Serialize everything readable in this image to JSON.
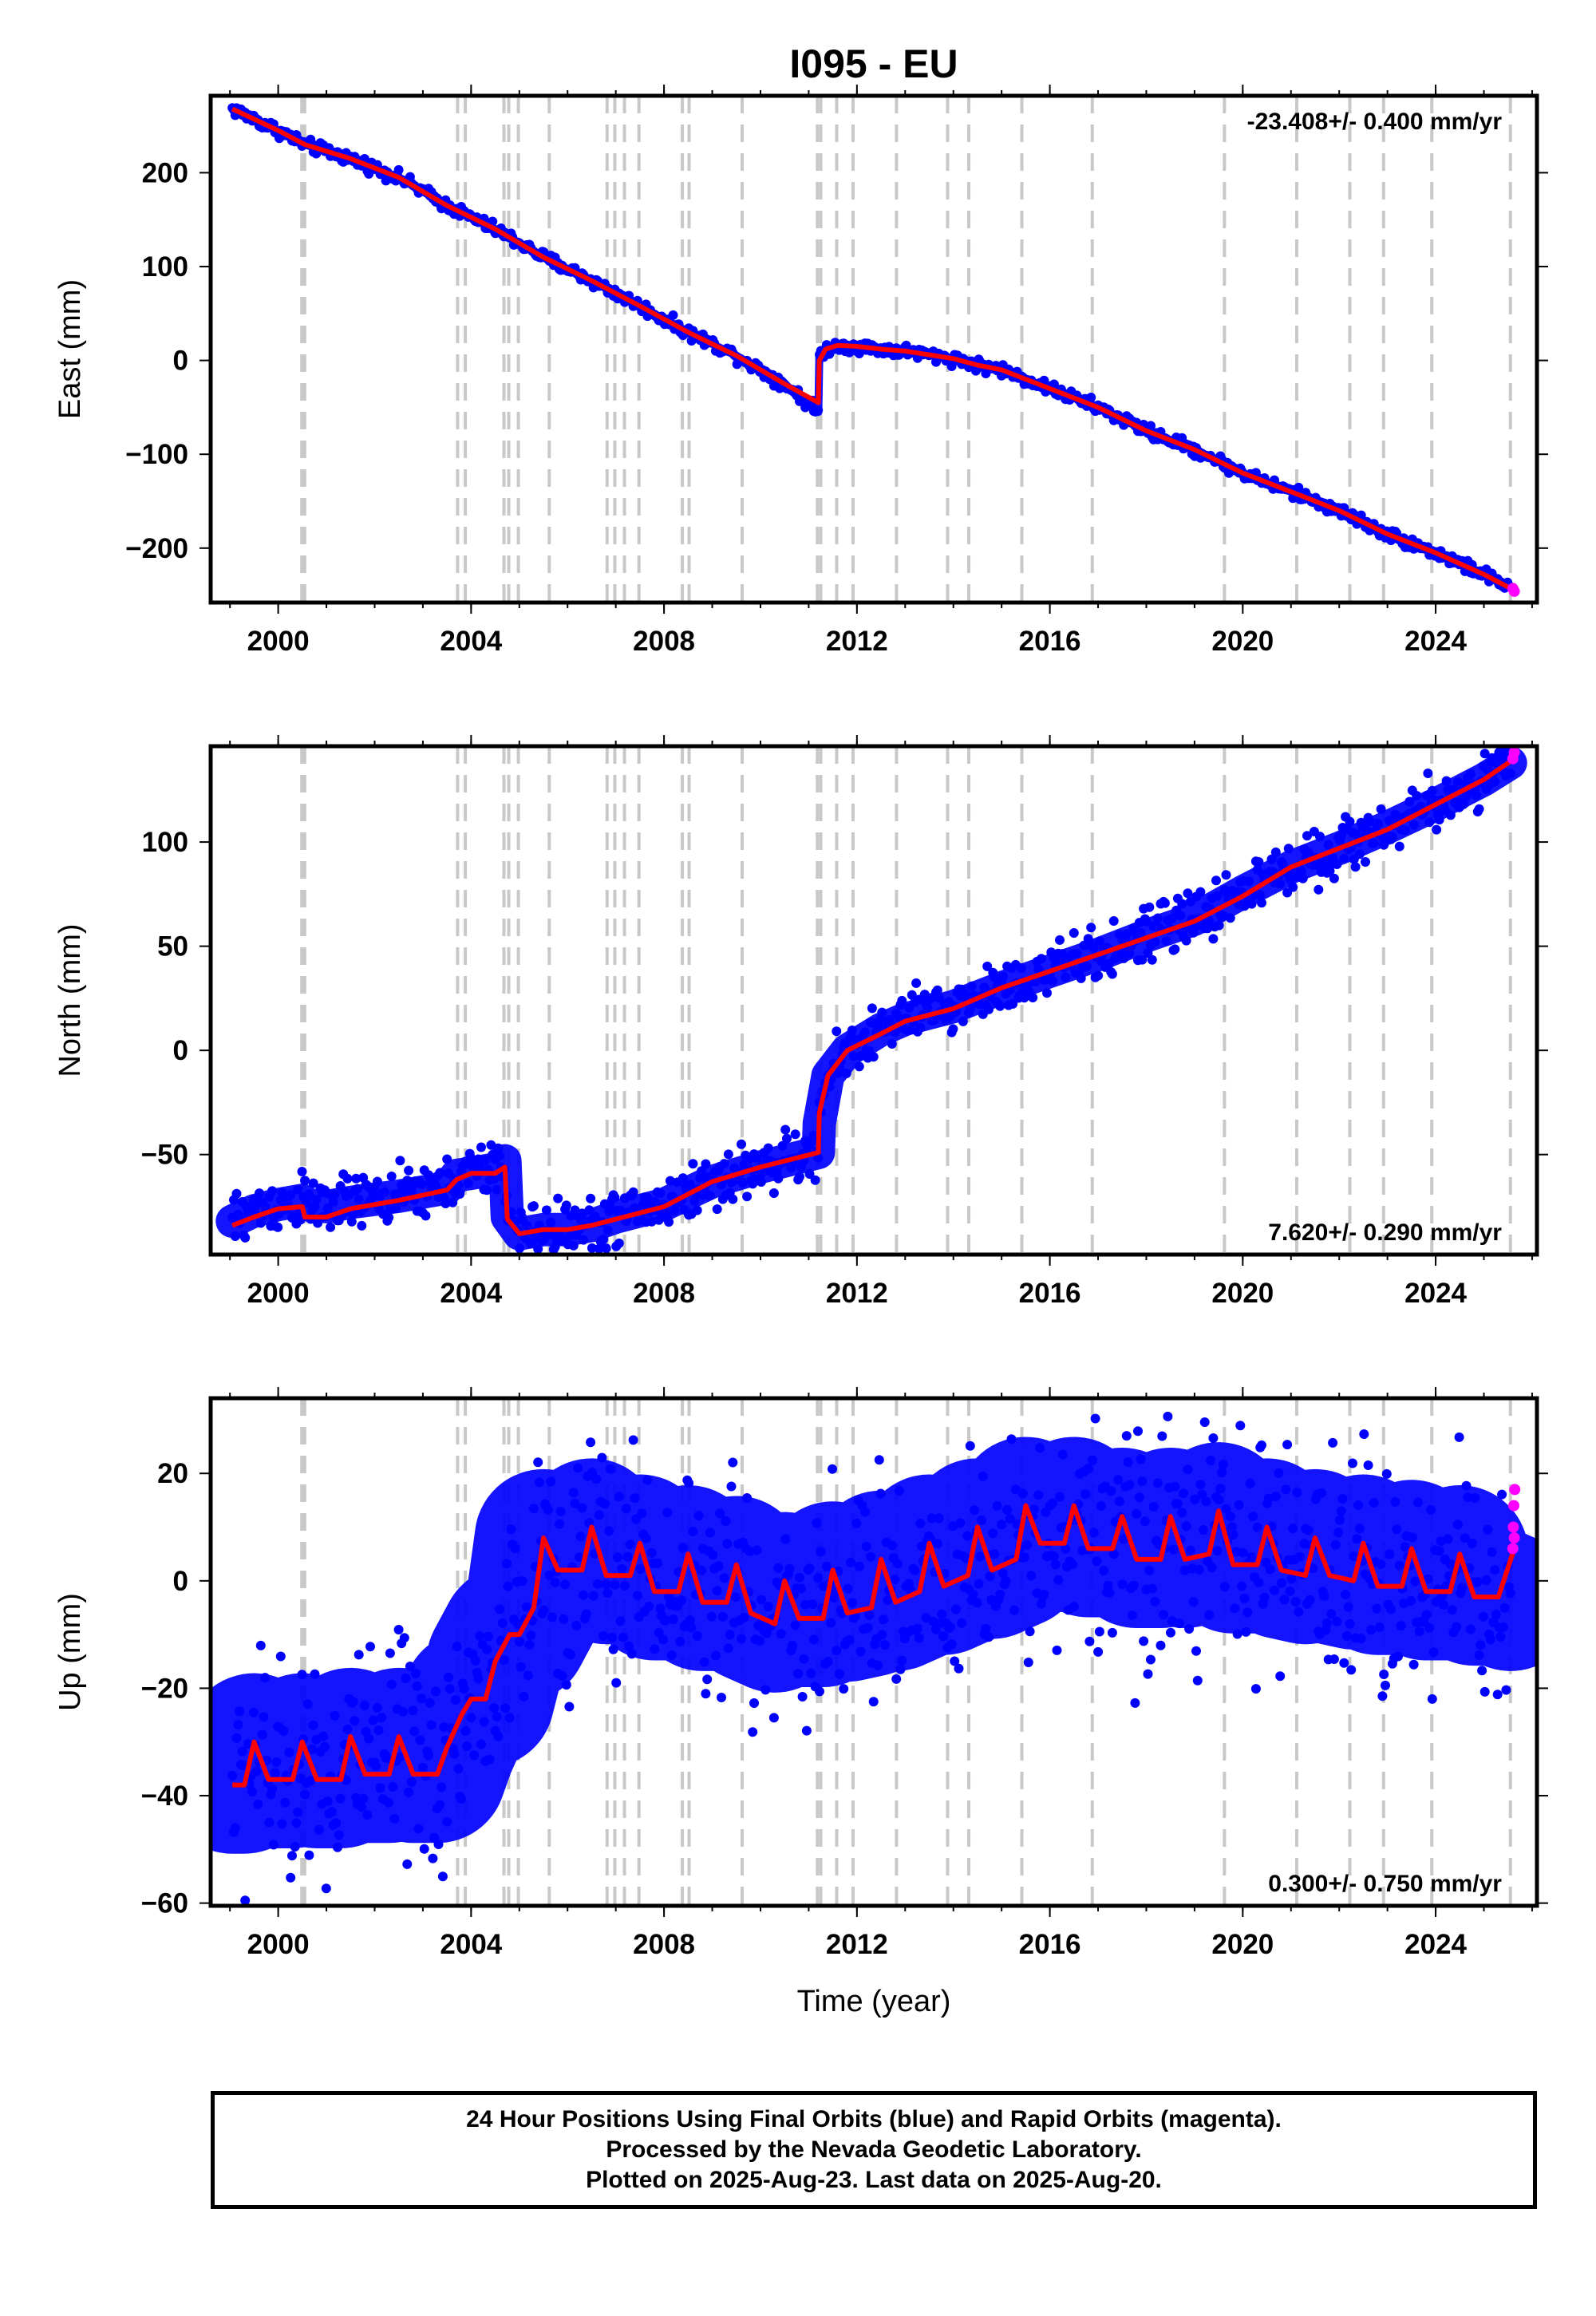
{
  "title": "I095 - EU",
  "time_axis_label": "Time (year)",
  "footer_lines": [
    "24 Hour Positions Using Final Orbits (blue) and Rapid Orbits (magenta).",
    "Processed by the Nevada Geodetic Laboratory.",
    "Plotted on 2025-Aug-23. Last data on 2025-Aug-20."
  ],
  "colors": {
    "final_orbits": "#0000ff",
    "rapid_orbits": "#ff00ff",
    "model_fit": "#ff0000",
    "event_lines": "#c8c8c8"
  },
  "chart_data": [
    {
      "type": "scatter",
      "ylabel": "East (mm)",
      "xlabel": "",
      "rate": "-23.408+/- 0.400 mm/yr",
      "rate_position": "top-right",
      "xlim": [
        1998.6,
        2026.1
      ],
      "ylim": [
        -258,
        282
      ],
      "x_ticks": [
        2000,
        2004,
        2008,
        2012,
        2016,
        2020,
        2024
      ],
      "x_tick_labels": [
        "2000",
        "2004",
        "2008",
        "2012",
        "2016",
        "2020",
        "2024"
      ],
      "y_ticks": [
        -200,
        -100,
        0,
        100,
        200
      ],
      "y_tick_labels": [
        "−200",
        "−100",
        "0",
        "100",
        "200"
      ],
      "event_years": [
        2000.49,
        2000.55,
        2003.72,
        2003.88,
        2004.68,
        2004.78,
        2004.98,
        2005.62,
        2006.82,
        2006.98,
        2007.18,
        2007.48,
        2008.38,
        2008.52,
        2009.62,
        2011.18,
        2011.25,
        2011.58,
        2011.92,
        2012.82,
        2013.88,
        2014.32,
        2015.42,
        2016.88,
        2019.62,
        2021.12,
        2022.22,
        2022.92,
        2023.92,
        2025.55
      ],
      "model_fit": {
        "x": [
          1999.05,
          2000.0,
          2000.55,
          2001.5,
          2002.5,
          2003.5,
          2004.5,
          2005.5,
          2006.5,
          2007.5,
          2008.5,
          2009.5,
          2010.5,
          2011.2,
          2011.22,
          2011.35,
          2011.6,
          2012.0,
          2012.5,
          2013.0,
          2013.5,
          2014.0,
          2014.5,
          2015.0,
          2016.0,
          2017.0,
          2018.0,
          2019.0,
          2020.0,
          2021.0,
          2022.0,
          2023.0,
          2024.0,
          2025.0,
          2025.63
        ],
        "y": [
          268,
          245,
          230,
          215,
          195,
          165,
          140,
          110,
          85,
          58,
          30,
          5,
          -25,
          -45,
          0,
          12,
          16,
          15,
          12,
          10,
          6,
          2,
          -5,
          -10,
          -30,
          -50,
          -75,
          -95,
          -120,
          -140,
          -160,
          -185,
          -205,
          -228,
          -245
        ]
      },
      "final_orbits": {
        "x": [
          1999.05,
          2000.0,
          2000.55,
          2001.5,
          2002.5,
          2003.5,
          2004.5,
          2005.5,
          2006.5,
          2007.5,
          2008.5,
          2009.5,
          2010.5,
          2011.2,
          2011.22,
          2011.35,
          2011.6,
          2012.0,
          2012.5,
          2013.0,
          2013.5,
          2014.0,
          2014.5,
          2015.0,
          2016.0,
          2017.0,
          2018.0,
          2019.0,
          2020.0,
          2021.0,
          2022.0,
          2023.0,
          2024.0,
          2025.0,
          2025.55
        ],
        "y": [
          268,
          245,
          230,
          215,
          195,
          165,
          140,
          110,
          85,
          58,
          30,
          5,
          -25,
          -55,
          5,
          12,
          16,
          15,
          12,
          10,
          6,
          2,
          -5,
          -10,
          -30,
          -50,
          -75,
          -95,
          -120,
          -140,
          -160,
          -185,
          -205,
          -228,
          -242
        ],
        "spread": 5
      },
      "rapid_orbits": {
        "x": [
          2025.6,
          2025.63
        ],
        "y": [
          -243,
          -246
        ]
      }
    },
    {
      "type": "scatter",
      "ylabel": "North (mm)",
      "xlabel": "",
      "rate": "7.620+/- 0.290 mm/yr",
      "rate_position": "bottom-right",
      "xlim": [
        1998.6,
        2026.1
      ],
      "ylim": [
        -98,
        146
      ],
      "x_ticks": [
        2000,
        2004,
        2008,
        2012,
        2016,
        2020,
        2024
      ],
      "x_tick_labels": [
        "2000",
        "2004",
        "2008",
        "2012",
        "2016",
        "2020",
        "2024"
      ],
      "y_ticks": [
        -50,
        0,
        50,
        100
      ],
      "y_tick_labels": [
        "−50",
        "0",
        "50",
        "100"
      ],
      "event_years": [
        2000.49,
        2000.55,
        2003.72,
        2003.88,
        2004.68,
        2004.78,
        2004.98,
        2005.62,
        2006.82,
        2006.98,
        2007.18,
        2007.48,
        2008.38,
        2008.52,
        2009.62,
        2011.18,
        2011.25,
        2011.58,
        2011.92,
        2012.82,
        2013.88,
        2014.32,
        2015.42,
        2016.88,
        2019.62,
        2021.12,
        2022.22,
        2022.92,
        2023.92,
        2025.55
      ],
      "model_fit": {
        "x": [
          1999.05,
          1999.5,
          2000.0,
          2000.5,
          2000.55,
          2001.0,
          2001.5,
          2002.5,
          2003.5,
          2003.7,
          2004.0,
          2004.5,
          2004.7,
          2004.75,
          2005.0,
          2005.5,
          2006.0,
          2006.5,
          2007.0,
          2008.0,
          2009.0,
          2010.0,
          2011.2,
          2011.22,
          2011.4,
          2011.8,
          2012.5,
          2013.0,
          2014.0,
          2015.0,
          2016.0,
          2017.0,
          2018.0,
          2019.0,
          2020.0,
          2021.0,
          2022.0,
          2023.0,
          2024.0,
          2025.0,
          2025.63
        ],
        "y": [
          -84,
          -80,
          -76,
          -75,
          -80,
          -80,
          -76,
          -72,
          -67,
          -62,
          -59,
          -59,
          -56,
          -81,
          -88,
          -86,
          -86,
          -84,
          -81,
          -75,
          -63,
          -56,
          -49,
          -30,
          -12,
          0,
          8,
          14,
          20,
          30,
          38,
          46,
          54,
          62,
          74,
          88,
          97,
          106,
          118,
          130,
          140
        ]
      },
      "final_orbits": {
        "x": [
          1999.05,
          1999.5,
          2000.0,
          2000.5,
          2000.55,
          2001.0,
          2001.5,
          2002.5,
          2003.5,
          2003.7,
          2004.0,
          2004.5,
          2004.7,
          2004.75,
          2005.0,
          2005.5,
          2006.0,
          2006.5,
          2007.0,
          2008.0,
          2009.0,
          2010.0,
          2011.2,
          2011.22,
          2011.4,
          2011.8,
          2012.5,
          2013.0,
          2014.0,
          2015.0,
          2016.0,
          2017.0,
          2018.0,
          2019.0,
          2020.0,
          2021.0,
          2022.0,
          2023.0,
          2024.0,
          2025.0,
          2025.55
        ],
        "y": [
          -82,
          -77,
          -74,
          -72,
          -74,
          -75,
          -73,
          -70,
          -66,
          -60,
          -59,
          -57,
          -53,
          -80,
          -88,
          -86,
          -86,
          -84,
          -80,
          -74,
          -63,
          -56,
          -49,
          -35,
          -12,
          0,
          10,
          15,
          21,
          30,
          38,
          46,
          55,
          63,
          76,
          88,
          97,
          107,
          118,
          130,
          138
        ],
        "spread": 10
      },
      "rapid_orbits": {
        "x": [
          2025.6,
          2025.63
        ],
        "y": [
          140,
          143
        ]
      }
    },
    {
      "type": "scatter",
      "ylabel": "Up (mm)",
      "xlabel": "Time (year)",
      "rate": "0.300+/- 0.750 mm/yr",
      "rate_position": "bottom-right",
      "xlim": [
        1998.6,
        2026.1
      ],
      "ylim": [
        -60.5,
        34
      ],
      "x_ticks": [
        2000,
        2004,
        2008,
        2012,
        2016,
        2020,
        2024
      ],
      "x_tick_labels": [
        "2000",
        "2004",
        "2008",
        "2012",
        "2016",
        "2020",
        "2024"
      ],
      "y_ticks": [
        -60,
        -40,
        -20,
        0,
        20
      ],
      "y_tick_labels": [
        "−60",
        "−40",
        "−20",
        "0",
        "20"
      ],
      "event_years": [
        2000.49,
        2000.55,
        2003.72,
        2003.88,
        2004.68,
        2004.78,
        2004.98,
        2005.62,
        2006.82,
        2006.98,
        2007.18,
        2007.48,
        2008.38,
        2008.52,
        2009.62,
        2011.18,
        2011.25,
        2011.58,
        2011.92,
        2012.82,
        2013.88,
        2014.32,
        2015.42,
        2016.88,
        2019.62,
        2021.12,
        2022.22,
        2022.92,
        2023.92,
        2025.55
      ],
      "model_fit": {
        "x": [
          1999.05,
          1999.3,
          1999.5,
          1999.8,
          2000.3,
          2000.5,
          2000.8,
          2001.3,
          2001.5,
          2001.8,
          2002.3,
          2002.5,
          2002.8,
          2003.3,
          2003.5,
          2003.8,
          2004.0,
          2004.3,
          2004.5,
          2004.8,
          2005.0,
          2005.3,
          2005.5,
          2005.8,
          2006.3,
          2006.5,
          2006.8,
          2007.3,
          2007.5,
          2007.8,
          2008.3,
          2008.5,
          2008.8,
          2009.3,
          2009.5,
          2009.8,
          2010.3,
          2010.5,
          2010.8,
          2011.3,
          2011.5,
          2011.8,
          2012.3,
          2012.5,
          2012.8,
          2013.3,
          2013.5,
          2013.8,
          2014.3,
          2014.5,
          2014.8,
          2015.3,
          2015.5,
          2015.8,
          2016.3,
          2016.5,
          2016.8,
          2017.3,
          2017.5,
          2017.8,
          2018.3,
          2018.5,
          2018.8,
          2019.3,
          2019.5,
          2019.8,
          2020.3,
          2020.5,
          2020.8,
          2021.3,
          2021.5,
          2021.8,
          2022.3,
          2022.5,
          2022.8,
          2023.3,
          2023.5,
          2023.8,
          2024.3,
          2024.5,
          2024.8,
          2025.3,
          2025.63
        ],
        "y": [
          -38,
          -38,
          -30,
          -37,
          -37,
          -30,
          -37,
          -37,
          -29,
          -36,
          -36,
          -29,
          -36,
          -36,
          -31,
          -25,
          -22,
          -22,
          -15,
          -10,
          -10,
          -5,
          8,
          2,
          2,
          10,
          1,
          1,
          7,
          -2,
          -2,
          5,
          -4,
          -4,
          3,
          -6,
          -8,
          0,
          -7,
          -7,
          2,
          -6,
          -5,
          4,
          -4,
          -2,
          7,
          -1,
          1,
          10,
          2,
          4,
          14,
          7,
          7,
          14,
          6,
          6,
          12,
          4,
          4,
          12,
          4,
          5,
          13,
          3,
          3,
          10,
          2,
          1,
          8,
          1,
          0,
          7,
          -1,
          -1,
          6,
          -2,
          -2,
          5,
          -3,
          -3,
          6
        ]
      },
      "final_orbits": {
        "x": [
          1999.05,
          1999.3,
          1999.5,
          1999.8,
          2000.3,
          2000.5,
          2000.8,
          2001.3,
          2001.5,
          2001.8,
          2002.3,
          2002.5,
          2002.8,
          2003.3,
          2003.5,
          2003.8,
          2004.0,
          2004.3,
          2004.5,
          2004.8,
          2005.0,
          2005.3,
          2005.5,
          2005.8,
          2006.3,
          2006.5,
          2006.8,
          2007.3,
          2007.5,
          2007.8,
          2008.3,
          2008.5,
          2008.8,
          2009.3,
          2009.5,
          2009.8,
          2010.3,
          2010.5,
          2010.8,
          2011.3,
          2011.5,
          2011.8,
          2012.3,
          2012.5,
          2012.8,
          2013.3,
          2013.5,
          2013.8,
          2014.3,
          2014.5,
          2014.8,
          2015.3,
          2015.5,
          2015.8,
          2016.3,
          2016.5,
          2016.8,
          2017.3,
          2017.5,
          2017.8,
          2018.3,
          2018.5,
          2018.8,
          2019.3,
          2019.5,
          2019.8,
          2020.3,
          2020.5,
          2020.8,
          2021.3,
          2021.5,
          2021.8,
          2022.3,
          2022.5,
          2022.8,
          2023.3,
          2023.5,
          2023.8,
          2024.3,
          2024.5,
          2024.8,
          2025.3,
          2025.55
        ],
        "y": [
          -38,
          -38,
          -30,
          -37,
          -37,
          -30,
          -37,
          -37,
          -29,
          -36,
          -36,
          -29,
          -36,
          -36,
          -31,
          -25,
          -22,
          -22,
          -15,
          -10,
          -10,
          -5,
          8,
          2,
          2,
          10,
          1,
          1,
          7,
          -2,
          -2,
          5,
          -4,
          -4,
          3,
          -6,
          -8,
          0,
          -7,
          -7,
          2,
          -6,
          -5,
          4,
          -4,
          -2,
          7,
          -1,
          1,
          10,
          2,
          4,
          14,
          7,
          7,
          14,
          6,
          6,
          12,
          4,
          4,
          12,
          4,
          5,
          13,
          3,
          3,
          10,
          2,
          1,
          8,
          1,
          0,
          7,
          -1,
          -1,
          6,
          -2,
          -2,
          5,
          -3,
          -3,
          -4
        ],
        "spread": 16
      },
      "rapid_orbits": {
        "x": [
          2025.6,
          2025.61,
          2025.62,
          2025.63,
          2025.64
        ],
        "y": [
          6,
          10,
          14,
          8,
          17
        ]
      }
    }
  ]
}
